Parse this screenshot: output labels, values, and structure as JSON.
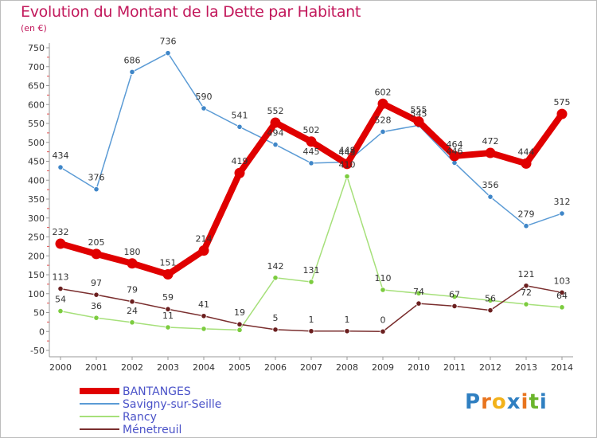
{
  "title": "Evolution du Montant de la Dette par Habitant",
  "subtitle": "(en €)",
  "logo": {
    "letters": [
      "P",
      "r",
      "o",
      "x",
      "i",
      "t",
      "i"
    ],
    "colors": [
      "#2f7fc1",
      "#e8741e",
      "#f2b21b",
      "#2f7fc1",
      "#e8741e",
      "#6bb52c",
      "#2f7fc1"
    ]
  },
  "chart_data": {
    "type": "line",
    "x": [
      2000,
      2001,
      2002,
      2003,
      2004,
      2005,
      2006,
      2007,
      2008,
      2009,
      2010,
      2011,
      2012,
      2013,
      2014
    ],
    "ylim": [
      -50,
      750
    ],
    "yticks": [
      -50,
      0,
      50,
      100,
      150,
      200,
      250,
      300,
      350,
      400,
      450,
      500,
      550,
      600,
      650,
      700,
      750
    ],
    "grid": false,
    "legend_position": "bottom-left",
    "series": [
      {
        "name": "Savigny-sur-Seille",
        "color": "#5b9bd5",
        "marker": "#3f86c8",
        "width": 1.5,
        "values": [
          434,
          376,
          686,
          736,
          590,
          541,
          494,
          445,
          448,
          528,
          545,
          446,
          356,
          279,
          312
        ],
        "labels": [
          "434",
          "376",
          "686",
          "736",
          "590",
          "541",
          "494",
          "445",
          "448",
          "528",
          "545",
          "446",
          "356",
          "279",
          "312"
        ]
      },
      {
        "name": "Rancy",
        "color": "#a6e07a",
        "marker": "#7ccc3f",
        "width": 1.5,
        "values": [
          54,
          36,
          24,
          11,
          7,
          4,
          142,
          131,
          410,
          110,
          101,
          92,
          82,
          72,
          64
        ],
        "labels": [
          "54",
          "36",
          "24",
          "11",
          "",
          "",
          "142",
          "131",
          "410",
          "110",
          "",
          "",
          "",
          "72",
          "64"
        ]
      },
      {
        "name": "Ménetreuil",
        "color": "#7a2e2e",
        "marker": "#6b1f1f",
        "width": 1.5,
        "values": [
          113,
          97,
          79,
          59,
          41,
          19,
          5,
          1,
          1,
          0,
          74,
          67,
          56,
          121,
          103
        ],
        "labels": [
          "113",
          "97",
          "79",
          "59",
          "41",
          "19",
          "5",
          "1",
          "1",
          "0",
          "74",
          "67",
          "56",
          "121",
          "103"
        ]
      },
      {
        "name": "BANTANGES",
        "color": "#e00000",
        "marker": "#e00000",
        "width": 8,
        "values": [
          232,
          205,
          180,
          151,
          214,
          419,
          552,
          502,
          443,
          602,
          555,
          464,
          472,
          444,
          575
        ],
        "labels": [
          "232",
          "205",
          "180",
          "151",
          "214",
          "419",
          "552",
          "502",
          "443",
          "602",
          "555",
          "464",
          "472",
          "444",
          "575"
        ]
      }
    ],
    "legend": [
      {
        "name": "BANTANGES",
        "color": "#e00000",
        "width": 8
      },
      {
        "name": "Savigny-sur-Seille",
        "color": "#5b9bd5",
        "width": 1.5
      },
      {
        "name": "Rancy",
        "color": "#a6e07a",
        "width": 1.5
      },
      {
        "name": "Ménetreuil",
        "color": "#7a2e2e",
        "width": 1.5
      }
    ]
  }
}
